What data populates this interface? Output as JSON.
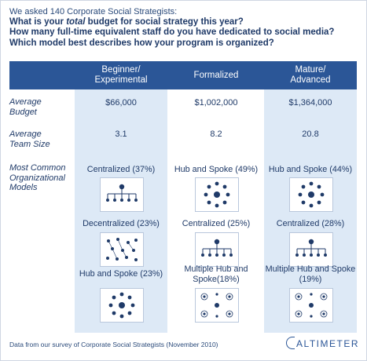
{
  "header": {
    "intro": "We asked 140 Corporate Social Strategists:",
    "q1_pre": "What is your ",
    "q1_em": "total",
    "q1_post": " budget for social strategy this year?",
    "q2": "How many full-time equivalent staff do you have dedicated to social media?",
    "q3": "Which model best describes how your program is organized?"
  },
  "columns": [
    {
      "line1": "Beginner/",
      "line2": "Experimental"
    },
    {
      "line1": "Formalized",
      "line2": ""
    },
    {
      "line1": "Mature/",
      "line2": "Advanced"
    }
  ],
  "rows": {
    "budget": {
      "line1": "Average",
      "line2": "Budget",
      "values": [
        "$66,000",
        "$1,002,000",
        "$1,364,000"
      ]
    },
    "team": {
      "line1": "Average",
      "line2": "Team Size",
      "values": [
        "3.1",
        "8.2",
        "20.8"
      ]
    },
    "models": {
      "line1": "Most Common",
      "line2": "Organizational",
      "line3": "Models"
    }
  },
  "models": [
    [
      {
        "label": "Centralized (37%)",
        "icon": "centralized-icon"
      },
      {
        "label": "Decentralized (23%)",
        "icon": "decentralized-icon"
      },
      {
        "label": "Hub and Spoke (23%)",
        "icon": "hub-and-spoke-icon"
      }
    ],
    [
      {
        "label": "Hub and Spoke (49%)",
        "icon": "hub-and-spoke-icon"
      },
      {
        "label": "Centralized (25%)",
        "icon": "centralized-icon"
      },
      {
        "label1": "Multiple Hub and",
        "label2": "Spoke(18%)",
        "icon": "multiple-hub-and-spoke-icon"
      }
    ],
    [
      {
        "label": "Hub and Spoke (44%)",
        "icon": "hub-and-spoke-icon"
      },
      {
        "label": "Centralized (28%)",
        "icon": "centralized-icon"
      },
      {
        "label1": "Multiple Hub and Spoke",
        "label2": "(19%)",
        "icon": "multiple-hub-and-spoke-icon"
      }
    ]
  ],
  "footer": "Data from our survey of Corporate Social Strategists (November 2010)",
  "logo": "ALTIMETER",
  "colors": {
    "header_bar": "#2b5697",
    "column_bg": "#dde9f6",
    "text": "#1f3a68"
  }
}
